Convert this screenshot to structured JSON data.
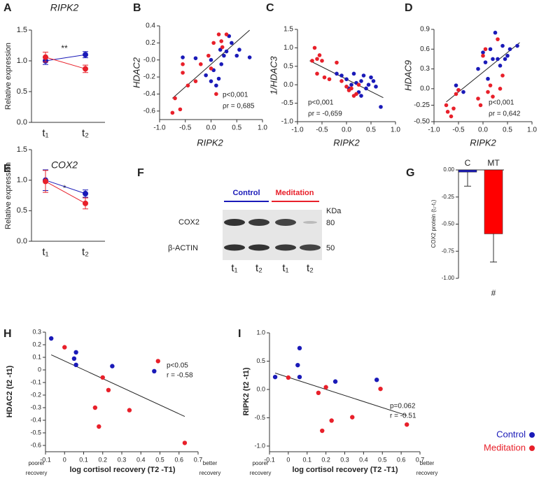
{
  "chart_data": [
    {
      "type": "line",
      "label": "A",
      "title": "RIPK2",
      "ylabel": "Relative expression",
      "categories": [
        "t₁",
        "t₂"
      ],
      "series": [
        {
          "color": "#1a1ab8",
          "values": [
            1.0,
            1.1
          ],
          "errors": [
            0.06,
            0.05
          ]
        },
        {
          "color": "#e8202a",
          "values": [
            1.06,
            0.87
          ],
          "errors": [
            0.08,
            0.06
          ]
        }
      ],
      "ylim": [
        0,
        1.5
      ],
      "yticks": [
        {
          "value": 0,
          "label": "0.0"
        },
        0.5,
        {
          "value": 1,
          "label": "1.0"
        },
        1.5
      ],
      "annotations": [
        "**"
      ]
    },
    {
      "type": "scatter",
      "label": "B",
      "ylabel": "HDAC2",
      "xlabel": "RIPK2",
      "series": [
        {
          "color": "#1a1ab8",
          "x": [
            -0.55,
            -0.3,
            -0.1,
            0.0,
            0.05,
            0.1,
            0.15,
            0.18,
            0.25,
            0.3,
            0.35,
            0.4,
            0.5,
            0.55,
            0.75,
            0.2,
            0.0
          ],
          "values": [
            0.03,
            0.02,
            -0.18,
            -0.25,
            -0.12,
            -0.3,
            -0.22,
            0.12,
            0.05,
            0.1,
            0.28,
            0.2,
            0.05,
            0.12,
            0.03,
            -0.05,
            0.0
          ]
        },
        {
          "color": "#e8202a",
          "x": [
            -0.75,
            -0.7,
            -0.6,
            -0.55,
            -0.45,
            -0.3,
            -0.2,
            -0.05,
            0.05,
            0.15,
            0.2,
            0.22,
            0.3,
            0.1,
            0.0,
            -0.55
          ],
          "values": [
            -0.62,
            -0.45,
            -0.58,
            -0.15,
            -0.3,
            -0.25,
            -0.05,
            0.05,
            0.2,
            0.3,
            0.22,
            0.15,
            0.3,
            -0.4,
            -0.1,
            -0.05
          ]
        }
      ],
      "fit": {
        "x": [
          -0.75,
          0.75
        ],
        "y": [
          -0.45,
          0.35
        ]
      },
      "xlim": [
        -1,
        1
      ],
      "xticks": [
        {
          "value": -1,
          "label": "-1.0"
        },
        -0.5,
        {
          "value": 0,
          "label": "0.0"
        },
        0.5,
        {
          "value": 1,
          "label": "1.0"
        }
      ],
      "ylim": [
        -0.7,
        0.4
      ],
      "yticks": [
        0.4,
        0.2,
        {
          "value": 0,
          "label": "-0.0"
        },
        -0.2,
        -0.4,
        -0.6
      ],
      "annotations": [
        "p<0,001",
        "ρr = 0,685"
      ]
    },
    {
      "type": "scatter",
      "label": "C",
      "ylabel": "1/HDAC3",
      "xlabel": "RIPK2",
      "series": [
        {
          "color": "#1a1ab8",
          "x": [
            -0.2,
            -0.1,
            0.0,
            0.05,
            0.1,
            0.15,
            0.2,
            0.25,
            0.3,
            0.35,
            0.4,
            0.45,
            0.5,
            0.55,
            0.6,
            0.7,
            0.3
          ],
          "values": [
            0.3,
            0.25,
            0.15,
            -0.1,
            0.0,
            0.3,
            0.05,
            -0.2,
            0.1,
            0.25,
            -0.1,
            0.0,
            0.2,
            0.1,
            -0.05,
            -0.6,
            -0.3
          ]
        },
        {
          "color": "#e8202a",
          "x": [
            -0.7,
            -0.65,
            -0.6,
            -0.55,
            -0.5,
            -0.45,
            -0.35,
            -0.2,
            -0.1,
            0.0,
            0.05,
            0.1,
            0.15,
            0.2,
            -0.6,
            0.25
          ],
          "values": [
            0.65,
            1.0,
            0.7,
            0.8,
            0.65,
            0.2,
            0.15,
            0.6,
            0.1,
            -0.05,
            -0.15,
            -0.1,
            -0.3,
            -0.25,
            0.3,
            0.0
          ]
        }
      ],
      "fit": {
        "x": [
          -0.75,
          0.75
        ],
        "y": [
          0.65,
          -0.35
        ]
      },
      "xlim": [
        -1,
        1
      ],
      "xticks": [
        {
          "value": -1,
          "label": "-1.0"
        },
        -0.5,
        {
          "value": 0,
          "label": "0.0"
        },
        0.5,
        {
          "value": 1,
          "label": "1.0"
        }
      ],
      "ylim": [
        -1,
        1.5
      ],
      "yticks": [
        1.5,
        {
          "value": 1,
          "label": "1.0"
        },
        0.5,
        {
          "value": 0,
          "label": "0.0"
        },
        -0.5,
        {
          "value": -1,
          "label": "-1.0"
        }
      ],
      "annotations": [
        "p<0,001",
        "ρr = -0,659"
      ]
    },
    {
      "type": "scatter",
      "label": "D",
      "ylabel": "HDAC9",
      "xlabel": "RIPK2",
      "series": [
        {
          "color": "#1a1ab8",
          "x": [
            -0.55,
            -0.5,
            -0.4,
            -0.1,
            0.0,
            0.05,
            0.1,
            0.15,
            0.2,
            0.25,
            0.3,
            0.35,
            0.4,
            0.45,
            0.5,
            0.55,
            0.7
          ],
          "values": [
            0.05,
            -0.02,
            -0.05,
            0.3,
            0.55,
            0.4,
            0.15,
            0.6,
            0.45,
            0.85,
            0.45,
            0.35,
            0.65,
            0.45,
            0.5,
            0.6,
            0.65
          ]
        },
        {
          "color": "#e8202a",
          "x": [
            -0.75,
            -0.72,
            -0.65,
            -0.6,
            -0.55,
            -0.5,
            -0.1,
            -0.05,
            0.0,
            0.05,
            0.1,
            0.15,
            0.2,
            0.3,
            0.35,
            0.4
          ],
          "values": [
            -0.25,
            -0.35,
            -0.42,
            -0.3,
            -0.08,
            -0.02,
            -0.15,
            -0.25,
            0.5,
            0.6,
            -0.05,
            0.05,
            -0.12,
            0.75,
            0.0,
            0.2
          ]
        }
      ],
      "fit": {
        "x": [
          -0.75,
          0.75
        ],
        "y": [
          -0.2,
          0.7
        ]
      },
      "xlim": [
        -1,
        1
      ],
      "xticks": [
        {
          "value": -1,
          "label": "-1.0"
        },
        -0.5,
        {
          "value": 0,
          "label": "0.0"
        },
        0.5,
        {
          "value": 1,
          "label": "1.0"
        }
      ],
      "ylim": [
        -0.5,
        0.9
      ],
      "yticks": [
        0.9,
        0.6,
        0.3,
        {
          "value": 0,
          "label": "0.0"
        },
        -0.25,
        {
          "value": -0.5,
          "label": "-0.50"
        }
      ],
      "annotations": [
        "p<0,001",
        "ρr = 0,642"
      ]
    },
    {
      "type": "line",
      "label": "E",
      "title": "COX2",
      "ylabel": "Relative expression",
      "categories": [
        "t₁",
        "t₂"
      ],
      "series": [
        {
          "color": "#1a1ab8",
          "values": [
            1.0,
            0.78
          ],
          "errors": [
            0.17,
            0.06
          ]
        },
        {
          "color": "#e8202a",
          "values": [
            0.98,
            0.62
          ],
          "errors": [
            0.18,
            0.09
          ]
        }
      ],
      "ylim": [
        0,
        1.5
      ],
      "yticks": [
        {
          "value": 0,
          "label": "0.0"
        },
        0.5,
        {
          "value": 1,
          "label": "1.0"
        },
        1.5
      ],
      "annotations": [
        "*"
      ]
    },
    {
      "type": "bar",
      "label": "G",
      "ylabel": "COX2 protein (t₂-t₁)",
      "categories": [
        "C",
        "MT"
      ],
      "values": [
        -0.02,
        -0.59
      ],
      "errors": [
        0.13,
        0.26
      ],
      "colors": [
        "#1a1ab8",
        "#ff0000"
      ],
      "ylim": [
        -1,
        0
      ],
      "yticks": [
        {
          "value": 0,
          "label": "0.00"
        },
        -0.25,
        {
          "value": -0.5,
          "label": "-0.50"
        },
        -0.75,
        {
          "value": -1,
          "label": "-1.00"
        }
      ],
      "annotations": [
        "#"
      ]
    },
    {
      "type": "scatter",
      "label": "H",
      "ylabel": "HDAC2 (t2 -t1)",
      "xlabel": "log cortisol recovery (T2 -T1)",
      "left_note": [
        "poorer",
        "recovery"
      ],
      "right_note": [
        "better",
        "recovery"
      ],
      "series": [
        {
          "color": "#1a1ab8",
          "x": [
            -0.07,
            0.05,
            0.06,
            0.06,
            0.25,
            0.47
          ],
          "values": [
            0.25,
            0.09,
            0.14,
            0.04,
            0.03,
            -0.01
          ]
        },
        {
          "color": "#e8202a",
          "x": [
            0.0,
            0.2,
            0.23,
            0.16,
            0.18,
            0.34,
            0.49,
            0.63
          ],
          "values": [
            0.18,
            -0.06,
            -0.16,
            -0.3,
            -0.45,
            -0.32,
            0.07,
            -0.58
          ]
        }
      ],
      "fit": {
        "x": [
          -0.07,
          0.63
        ],
        "y": [
          0.12,
          -0.37
        ]
      },
      "xlim": [
        -0.1,
        0.7
      ],
      "xticks": [
        -0.1,
        0,
        0.1,
        0.2,
        0.3,
        0.4,
        0.5,
        0.6,
        0.7
      ],
      "ylim": [
        -0.65,
        0.3
      ],
      "yticks": [
        0.3,
        0.2,
        0.1,
        0,
        -0.1,
        -0.2,
        -0.3,
        -0.4,
        -0.5,
        -0.6
      ],
      "annotations": [
        "p<0.05",
        "r = -0.58"
      ]
    },
    {
      "type": "scatter",
      "label": "I",
      "ylabel": "RIPK2 (t2 -t1)",
      "xlabel": "log cortisol recovery (T2 -T1)",
      "left_note": [
        "poorer",
        "recovery"
      ],
      "right_note": [
        "better",
        "recovery"
      ],
      "series": [
        {
          "name": "Control",
          "color": "#1a1ab8",
          "x": [
            -0.07,
            0.05,
            0.06,
            0.06,
            0.25,
            0.47
          ],
          "values": [
            0.22,
            0.43,
            0.73,
            0.22,
            0.14,
            0.17
          ]
        },
        {
          "name": "Meditation",
          "color": "#e8202a",
          "x": [
            0.0,
            0.16,
            0.18,
            0.23,
            0.2,
            0.34,
            0.49,
            0.63
          ],
          "values": [
            0.21,
            -0.06,
            -0.73,
            -0.55,
            0.04,
            -0.49,
            0.01,
            -0.62
          ]
        }
      ],
      "fit": {
        "x": [
          -0.07,
          0.63
        ],
        "y": [
          0.29,
          -0.46
        ]
      },
      "xlim": [
        -0.1,
        0.7
      ],
      "xticks": [
        -0.1,
        0,
        0.1,
        0.2,
        0.3,
        0.4,
        0.5,
        0.6,
        0.7
      ],
      "ylim": [
        -1.1,
        1
      ],
      "yticks": [
        {
          "value": 1,
          "label": "1.0"
        },
        0.5,
        {
          "value": 0,
          "label": "0.0"
        },
        -0.5,
        {
          "value": -1,
          "label": "-1.0"
        }
      ],
      "annotations": [
        "p=0.062",
        "r = -0.51"
      ],
      "legend": "right-outside"
    }
  ],
  "blot": {
    "label": "F",
    "groups": [
      "Control",
      "Meditation"
    ],
    "unit": "KDa",
    "rows": [
      {
        "name": "COX2",
        "kda": 80
      },
      {
        "name": "β-ACTIN",
        "kda": 50
      }
    ],
    "lanes": [
      "t₁",
      "t₂",
      "t₁",
      "t₂"
    ]
  }
}
